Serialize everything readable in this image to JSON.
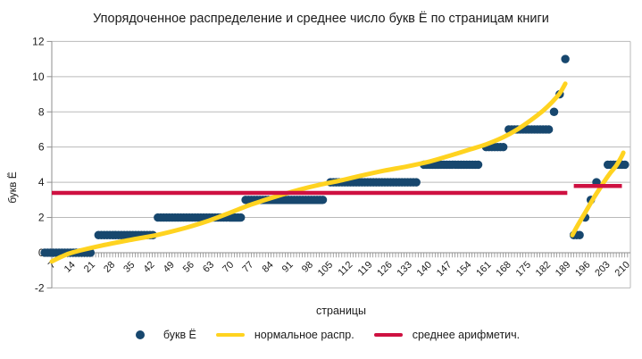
{
  "chart_data": {
    "type": "scatter",
    "title": "Упорядоченное распределение и среднее число букв Ё по страницам книги",
    "xlabel": "страницы",
    "ylabel": "букв Ё",
    "xlim": [
      6.5,
      211
    ],
    "ylim": [
      -2,
      12
    ],
    "y_ticks": [
      -2,
      0,
      2,
      4,
      6,
      8,
      10,
      12
    ],
    "x_tick_labels": [
      7,
      14,
      21,
      28,
      35,
      42,
      49,
      56,
      63,
      70,
      77,
      84,
      91,
      98,
      105,
      112,
      119,
      126,
      133,
      140,
      147,
      154,
      161,
      168,
      175,
      182,
      189,
      196,
      203,
      210
    ],
    "x_minor_tick_every": 1,
    "grid": "horizontal-only",
    "legend_position": "bottom",
    "colors": {
      "scatter": "#17476E",
      "normal_curve": "#FFD320",
      "mean_line": "#CE1141",
      "gridline": "#BABABA",
      "axis": "#8E8E8E",
      "text": "#1B1B1B"
    },
    "series": [
      {
        "name": "букв Ё",
        "type": "scatter",
        "color": "#17476E",
        "groups": [
          {
            "y": 0,
            "pages": [
              4,
              21
            ]
          },
          {
            "y": 1,
            "pages": [
              23,
              43
            ]
          },
          {
            "y": 2,
            "pages": [
              44,
              74
            ]
          },
          {
            "y": 3,
            "pages": [
              75,
              103
            ]
          },
          {
            "y": 4,
            "pages": [
              105,
              136
            ]
          },
          {
            "y": 5,
            "pages": [
              138,
              158
            ]
          },
          {
            "y": 6,
            "pages": [
              160,
              167
            ]
          },
          {
            "y": 7,
            "pages": [
              168,
              183
            ]
          },
          {
            "y": 8,
            "pages": [
              184,
              185
            ]
          },
          {
            "y": 9,
            "pages": [
              186,
              187
            ]
          },
          {
            "y": 11,
            "pages": [
              188,
              188
            ]
          },
          {
            "y": 1,
            "pages": [
              191,
              194
            ]
          },
          {
            "y": 2,
            "pages": [
              195,
              196
            ]
          },
          {
            "y": 3,
            "pages": [
              197,
              198
            ]
          },
          {
            "y": 4,
            "pages": [
              199,
              200
            ]
          },
          {
            "y": 5,
            "pages": [
              203,
              210
            ]
          }
        ]
      },
      {
        "name": "нормальное распр.",
        "type": "line",
        "color": "#FFD320",
        "stroke_width": 5,
        "curves": [
          [
            [
              6.5,
              -0.5
            ],
            [
              10,
              -0.22
            ],
            [
              14,
              0.02
            ],
            [
              24,
              0.4
            ],
            [
              34,
              0.72
            ],
            [
              44,
              1.02
            ],
            [
              54,
              1.42
            ],
            [
              62,
              1.82
            ],
            [
              70,
              2.3
            ],
            [
              76,
              2.68
            ],
            [
              82,
              3.0
            ],
            [
              88,
              3.3
            ],
            [
              94,
              3.58
            ],
            [
              101,
              3.85
            ],
            [
              108,
              4.08
            ],
            [
              116,
              4.38
            ],
            [
              124,
              4.66
            ],
            [
              132,
              4.9
            ],
            [
              140,
              5.18
            ],
            [
              147,
              5.5
            ],
            [
              154,
              5.85
            ],
            [
              160,
              6.15
            ],
            [
              166,
              6.55
            ],
            [
              171,
              7.0
            ],
            [
              176,
              7.55
            ],
            [
              180,
              8.05
            ],
            [
              183,
              8.5
            ],
            [
              186,
              9.05
            ],
            [
              188,
              9.6
            ]
          ],
          [
            [
              190.5,
              1.0
            ],
            [
              192,
              1.45
            ],
            [
              194,
              2.0
            ],
            [
              196,
              2.55
            ],
            [
              198,
              3.1
            ],
            [
              200,
              3.6
            ],
            [
              202,
              4.1
            ],
            [
              204,
              4.55
            ],
            [
              206,
              4.95
            ],
            [
              208,
              5.5
            ],
            [
              208.5,
              5.68
            ]
          ]
        ]
      },
      {
        "name": "среднее арифметич.",
        "type": "line",
        "color": "#CE1141",
        "stroke_width": 4.5,
        "segments": [
          {
            "y": 3.4,
            "from": 6.5,
            "to": 188.7
          },
          {
            "y": 3.79,
            "from": 191,
            "to": 208
          }
        ]
      }
    ]
  }
}
